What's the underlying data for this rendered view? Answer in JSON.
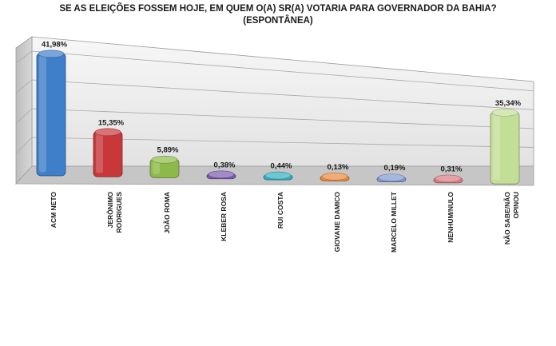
{
  "chart_data": {
    "type": "bar",
    "title": "SE AS ELEIÇÕES FOSSEM HOJE, EM QUEM O(A) SR(A) VOTARIA PARA GOVERNADOR DA BAHIA?",
    "subtitle": "(ESPONTÂNEA)",
    "xlabel": "",
    "ylabel": "",
    "ylim": [
      0,
      45
    ],
    "grid": true,
    "legend": "none",
    "categories": [
      [
        "ACM NETO"
      ],
      [
        "JERÔNIMO",
        "RODRIGUES"
      ],
      [
        "JOÃO ROMA"
      ],
      [
        "KLEBER ROSA"
      ],
      [
        "RUI COSTA"
      ],
      [
        "GIOVANE DAMICO"
      ],
      [
        "MARCELO MILLET"
      ],
      [
        "NENHUM/NULO"
      ],
      [
        "NÃO SABE/NÃO",
        "OPINOU"
      ]
    ],
    "values": [
      41.98,
      15.35,
      5.89,
      0.38,
      0.44,
      0.13,
      0.19,
      0.31,
      35.34
    ],
    "value_labels": [
      "41,98%",
      "15,35%",
      "5,89%",
      "0,38%",
      "0,44%",
      "0,13%",
      "0,19%",
      "0,31%",
      "35,34%"
    ],
    "colors": [
      "#3f7ec8",
      "#c8373a",
      "#8db94a",
      "#7a5ab0",
      "#30b0c0",
      "#e8893a",
      "#7f98cf",
      "#d97a80",
      "#c3de96"
    ]
  }
}
